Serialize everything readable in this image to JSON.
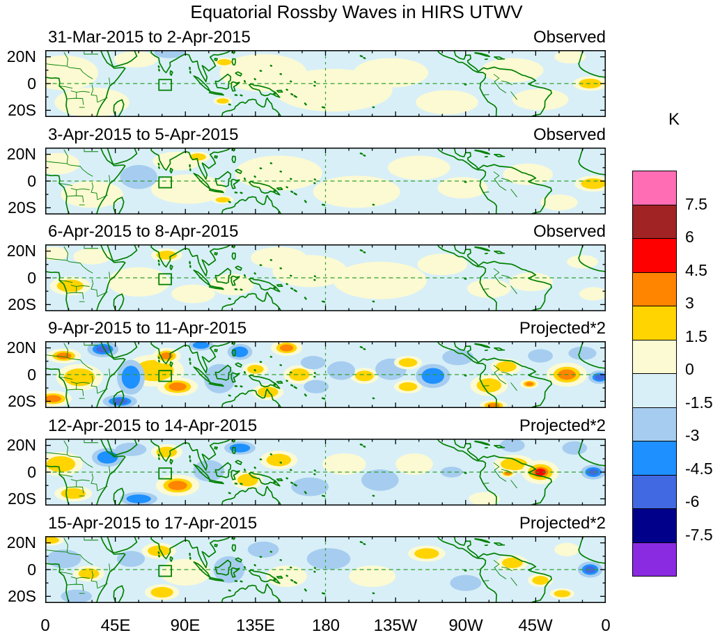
{
  "title": "Equatorial Rossby Waves in HIRS UTWV",
  "colorbar": {
    "unit": "K",
    "tick_labels": [
      "7.5",
      "6",
      "4.5",
      "3",
      "1.5",
      "0",
      "-1.5",
      "-3",
      "-4.5",
      "-6",
      "-7.5"
    ]
  },
  "axes": {
    "y_tick_labels": [
      "20N",
      "0",
      "20S"
    ],
    "x_tick_labels": [
      "0",
      "45E",
      "90E",
      "135E",
      "180",
      "135W",
      "90W",
      "45W",
      "0"
    ]
  },
  "chart_data": {
    "type": "heatmap",
    "subtype": "filled-contour-anomaly-maps",
    "unit": "K",
    "lon_range": [
      0,
      360
    ],
    "lat_range": [
      -25,
      25
    ],
    "contour_levels": [
      -7.5,
      -6,
      -4.5,
      -3,
      -1.5,
      0,
      1.5,
      3,
      4.5,
      6,
      7.5
    ],
    "band_colors_low_to_high": [
      "#8A2BE2",
      "#00008B",
      "#4169E1",
      "#1E90FF",
      "#A6CDEF",
      "#D8EFF8",
      "#FCFAD2",
      "#FFD400",
      "#FF8400",
      "#FF0000",
      "#A12323",
      "#FF6EB4"
    ],
    "background_band_color": "#D8EFF8",
    "coastline_color": "#008000",
    "gridline_color": "#2da02d",
    "region_box": {
      "lon": [
        73,
        81
      ],
      "lat": [
        -5,
        3
      ]
    },
    "anomaly_format": "[lon_deg_east, lat_deg_north, rx_deg, ry_deg, value_K]",
    "panels": [
      {
        "date_range": "31-Mar-2015 to 2-Apr-2015",
        "source_label": "Observed",
        "anomalies": [
          [
            12,
            8,
            22,
            13,
            1
          ],
          [
            30,
            -14,
            24,
            11,
            1
          ],
          [
            58,
            18,
            14,
            6,
            1
          ],
          [
            115,
            16,
            7,
            3.5,
            2
          ],
          [
            114,
            -13,
            6,
            3,
            2
          ],
          [
            80,
            23,
            10,
            4,
            -2
          ],
          [
            140,
            8,
            28,
            14,
            1
          ],
          [
            185,
            -5,
            38,
            16,
            1
          ],
          [
            222,
            8,
            24,
            11,
            1
          ],
          [
            258,
            -14,
            20,
            9,
            1
          ],
          [
            300,
            10,
            20,
            9,
            1
          ],
          [
            318,
            -12,
            18,
            8,
            1
          ],
          [
            350,
            0,
            11,
            5.5,
            2
          ],
          [
            337,
            20,
            10,
            5,
            1
          ]
        ]
      },
      {
        "date_range": "3-Apr-2015 to 5-Apr-2015",
        "source_label": "Observed",
        "anomalies": [
          [
            8,
            13,
            14,
            8,
            1
          ],
          [
            30,
            -10,
            20,
            10,
            1
          ],
          [
            60,
            3,
            12,
            9,
            -2
          ],
          [
            85,
            15,
            16,
            7,
            1
          ],
          [
            98,
            18,
            8,
            4,
            2
          ],
          [
            92,
            -6,
            24,
            11,
            1
          ],
          [
            114,
            -14,
            7,
            3,
            2
          ],
          [
            150,
            6,
            28,
            13,
            1
          ],
          [
            200,
            -8,
            28,
            12,
            1
          ],
          [
            240,
            10,
            20,
            9,
            1
          ],
          [
            268,
            -5,
            16,
            8,
            1
          ],
          [
            310,
            5,
            16,
            8,
            1
          ],
          [
            352,
            -2,
            12,
            6,
            2.6
          ],
          [
            330,
            -16,
            12,
            6,
            1
          ]
        ]
      },
      {
        "date_range": "6-Apr-2015 to 8-Apr-2015",
        "source_label": "Observed",
        "anomalies": [
          [
            16,
            -6,
            13,
            7,
            2
          ],
          [
            30,
            16,
            12,
            6,
            1
          ],
          [
            5,
            18,
            10,
            5,
            1
          ],
          [
            60,
            -3,
            20,
            11,
            1
          ],
          [
            78,
            17,
            10,
            5,
            2
          ],
          [
            95,
            -12,
            14,
            7,
            1
          ],
          [
            120,
            -5,
            14,
            8,
            1
          ],
          [
            150,
            15,
            18,
            8,
            1
          ],
          [
            170,
            5,
            24,
            12,
            1
          ],
          [
            215,
            -2,
            30,
            14,
            1
          ],
          [
            255,
            10,
            16,
            8,
            1
          ],
          [
            285,
            -8,
            14,
            7,
            1
          ],
          [
            312,
            -3,
            14,
            7,
            1
          ],
          [
            345,
            12,
            10,
            5,
            1
          ],
          [
            352,
            -12,
            9,
            5,
            1
          ]
        ]
      },
      {
        "date_range": "9-Apr-2015 to 11-Apr-2015",
        "source_label": "Projected*2",
        "anomalies": [
          [
            12,
            14,
            11,
            5.5,
            4
          ],
          [
            5,
            -18,
            12,
            6,
            3.5
          ],
          [
            22,
            -2,
            15,
            10,
            2
          ],
          [
            37,
            19,
            10,
            6,
            -4.8
          ],
          [
            55,
            -2,
            9,
            13,
            -4
          ],
          [
            48,
            -20,
            11,
            5,
            -4.8
          ],
          [
            70,
            3,
            19,
            12,
            2
          ],
          [
            78,
            14,
            9,
            6,
            4.2
          ],
          [
            85,
            -9,
            13,
            7,
            4.2
          ],
          [
            100,
            22,
            8,
            4,
            -3.5
          ],
          [
            112,
            -3,
            10,
            11,
            -2.5
          ],
          [
            125,
            17,
            8,
            6,
            -4
          ],
          [
            135,
            4,
            8,
            5,
            2.5
          ],
          [
            155,
            20,
            10,
            6,
            4
          ],
          [
            143,
            -13,
            10,
            6,
            2
          ],
          [
            163,
            0,
            10,
            7,
            2
          ],
          [
            172,
            9,
            8,
            5,
            -2.5
          ],
          [
            174,
            -9,
            8,
            5,
            -2.5
          ],
          [
            190,
            3,
            9,
            7,
            -2.5
          ],
          [
            205,
            -1,
            9,
            6,
            2
          ],
          [
            222,
            4,
            10,
            8,
            -2.5
          ],
          [
            233,
            9,
            9,
            5,
            2.5
          ],
          [
            233,
            -9,
            9,
            5,
            2.5
          ],
          [
            249,
            -1,
            11,
            9,
            -4
          ],
          [
            265,
            13,
            10,
            6,
            -2.5
          ],
          [
            285,
            -8,
            12,
            8,
            2
          ],
          [
            296,
            6,
            10,
            6,
            2
          ],
          [
            288,
            -23,
            9,
            4,
            3.5
          ],
          [
            311,
            -7,
            6,
            3.5,
            3.5
          ],
          [
            335,
            0,
            13,
            9,
            4.4
          ],
          [
            356,
            -2,
            7,
            5,
            -4.6
          ],
          [
            345,
            16,
            9,
            5,
            -3
          ],
          [
            318,
            14,
            8,
            5,
            -2
          ]
        ]
      },
      {
        "date_range": "12-Apr-2015 to 14-Apr-2015",
        "source_label": "Projected*2",
        "anomalies": [
          [
            10,
            6,
            14,
            9,
            2
          ],
          [
            18,
            -16,
            12,
            6,
            2.5
          ],
          [
            40,
            11,
            10,
            7,
            -3.5
          ],
          [
            60,
            -20,
            12,
            5,
            -4
          ],
          [
            55,
            17,
            10,
            5,
            -2.5
          ],
          [
            78,
            15,
            10,
            6,
            2.6
          ],
          [
            85,
            -10,
            14,
            8,
            3.6
          ],
          [
            105,
            1,
            10,
            8,
            -2.5
          ],
          [
            125,
            18,
            10,
            5,
            -3.5
          ],
          [
            130,
            -6,
            10,
            7,
            2
          ],
          [
            150,
            9,
            12,
            7,
            2
          ],
          [
            170,
            -11,
            12,
            7,
            -2.5
          ],
          [
            192,
            6,
            14,
            8,
            1
          ],
          [
            215,
            -6,
            12,
            8,
            -2.5
          ],
          [
            237,
            6,
            12,
            8,
            1
          ],
          [
            261,
            0,
            7,
            4,
            -2.5
          ],
          [
            297,
            -1,
            5,
            3,
            3.6
          ],
          [
            301,
            6,
            13,
            7,
            2
          ],
          [
            318,
            0,
            12,
            9,
            4.6
          ],
          [
            352,
            0,
            8,
            5.5,
            -4.6
          ],
          [
            340,
            18,
            8,
            5,
            -2.5
          ],
          [
            300,
            20,
            8,
            5,
            -2.5
          ],
          [
            282,
            -20,
            10,
            5,
            1
          ]
        ]
      },
      {
        "date_range": "15-Apr-2015 to 17-Apr-2015",
        "source_label": "Projected*2",
        "anomalies": [
          [
            3,
            22,
            9,
            4,
            2
          ],
          [
            12,
            8,
            11,
            7,
            -2.5
          ],
          [
            28,
            -3,
            10,
            6,
            2.6
          ],
          [
            20,
            -20,
            10,
            5,
            -2
          ],
          [
            55,
            8,
            9,
            6,
            -2
          ],
          [
            73,
            14,
            11,
            6,
            2.8
          ],
          [
            75,
            -17,
            11,
            6,
            2.5
          ],
          [
            90,
            -2,
            16,
            10,
            1
          ],
          [
            118,
            0,
            10,
            10,
            -2
          ],
          [
            140,
            15,
            10,
            6,
            -2
          ],
          [
            155,
            -5,
            13,
            8,
            1
          ],
          [
            182,
            8,
            14,
            8,
            -2
          ],
          [
            210,
            -5,
            15,
            8,
            1
          ],
          [
            245,
            12,
            12,
            6,
            2
          ],
          [
            270,
            -10,
            10,
            6,
            -2
          ],
          [
            300,
            5,
            10,
            6,
            2
          ],
          [
            318,
            -8,
            8,
            5,
            2.6
          ],
          [
            350,
            0,
            8,
            6,
            -4.7
          ],
          [
            335,
            15,
            8,
            5,
            1
          ],
          [
            332,
            -18,
            8,
            4,
            2
          ]
        ]
      }
    ]
  }
}
